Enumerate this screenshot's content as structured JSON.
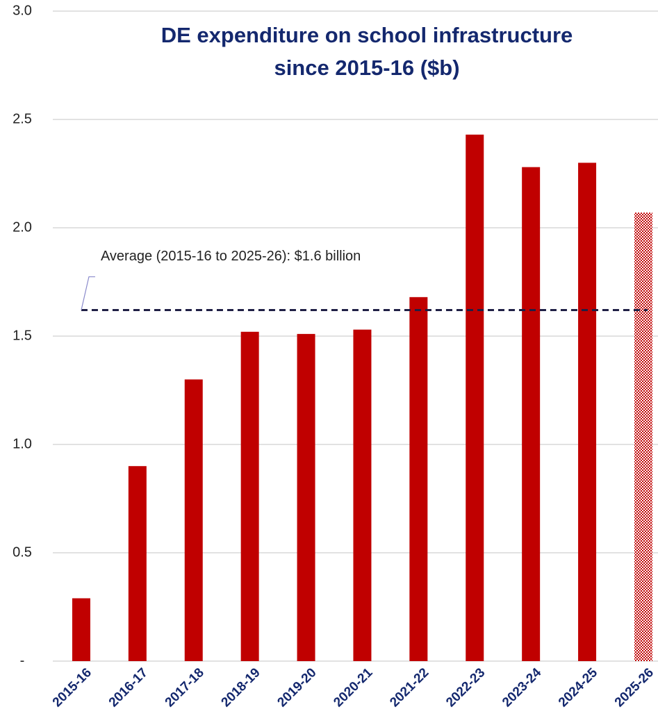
{
  "chart_data": {
    "type": "bar",
    "title": [
      "DE expenditure on school infrastructure",
      "since 2015-16 ($b)"
    ],
    "categories": [
      "2015-16",
      "2016-17",
      "2017-18",
      "2018-19",
      "2019-20",
      "2020-21",
      "2021-22",
      "2022-23",
      "2023-24",
      "2024-25",
      "2025-26"
    ],
    "values": [
      0.29,
      0.9,
      1.3,
      1.52,
      1.51,
      1.53,
      1.68,
      2.43,
      2.28,
      2.3,
      2.07
    ],
    "hatched": [
      false,
      false,
      false,
      false,
      false,
      false,
      false,
      false,
      false,
      false,
      true
    ],
    "color": "#c00000",
    "ylim": [
      0,
      3
    ],
    "yticks": [
      {
        "value": 0,
        "label": "-"
      },
      0.5,
      {
        "value": 1,
        "label": "1.0"
      },
      1.5,
      {
        "value": 2,
        "label": "2.0"
      },
      2.5,
      {
        "value": 3,
        "label": "3.0"
      }
    ],
    "grid": true,
    "average": {
      "value": 1.62,
      "label": "Average (2015-16 to 2025-26): $1.6 billion",
      "color": "#1f1f45"
    }
  }
}
